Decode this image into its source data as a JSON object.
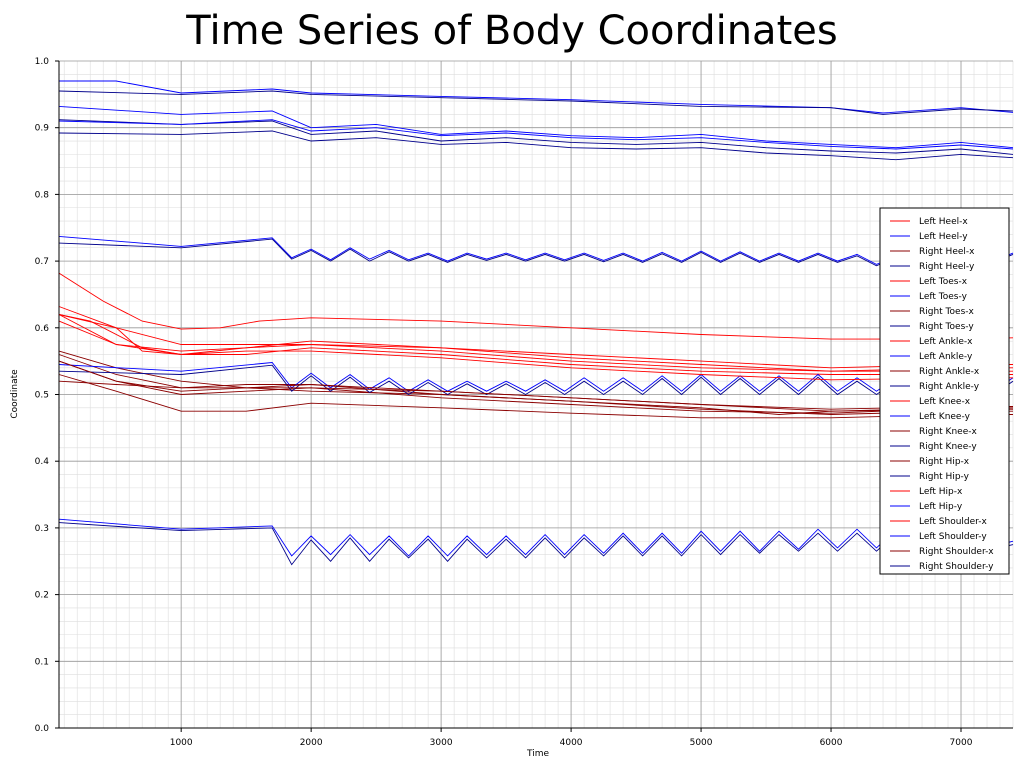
{
  "chart_data": {
    "type": "line",
    "title": "Time Series of Body Coordinates",
    "xlabel": "Time",
    "ylabel": "Coordinate",
    "xlim": [
      60,
      7400
    ],
    "ylim": [
      0.0,
      1.0
    ],
    "xticks": [
      1000,
      2000,
      3000,
      4000,
      5000,
      6000,
      7000
    ],
    "yticks": [
      0.0,
      0.1,
      0.2,
      0.3,
      0.4,
      0.5,
      0.6,
      0.7,
      0.8,
      0.9,
      1.0
    ],
    "xtick_labels": [
      "1000",
      "2000",
      "3000",
      "4000",
      "5000",
      "6000",
      "7000"
    ],
    "ytick_labels": [
      "0.0",
      "0.1",
      "0.2",
      "0.3",
      "0.4",
      "0.5",
      "0.6",
      "0.7",
      "0.8",
      "0.9",
      "1.0"
    ],
    "grid": true,
    "legend_position": "right",
    "colors": {
      "x_series": "#ff0000",
      "y_series": "#0000ff",
      "dark_x": "#8b0000",
      "dark_y": "#00008b"
    },
    "series": [
      {
        "name": "Left Heel-x",
        "color": "#ff0000",
        "x": [
          60,
          300,
          700,
          1000,
          1500,
          2000,
          3000,
          4000,
          5000,
          6000,
          7000,
          7400
        ],
        "y": [
          0.62,
          0.61,
          0.57,
          0.56,
          0.57,
          0.58,
          0.57,
          0.56,
          0.55,
          0.54,
          0.545,
          0.545
        ]
      },
      {
        "name": "Left Heel-y",
        "color": "#0000ff",
        "x": [
          60,
          1000,
          1700,
          1850,
          2000,
          2150,
          2300,
          2450,
          2600,
          2750,
          2900,
          3050,
          3200,
          3350,
          3500,
          3650,
          3800,
          3950,
          4100,
          4250,
          4400,
          4550,
          4700,
          4850,
          5000,
          5150,
          5300,
          5450,
          5600,
          5750,
          5900,
          6050,
          6200,
          6350,
          6500,
          6650,
          6800,
          6950,
          7100,
          7250,
          7400
        ],
        "y": [
          0.737,
          0.722,
          0.735,
          0.705,
          0.718,
          0.702,
          0.72,
          0.703,
          0.716,
          0.702,
          0.712,
          0.7,
          0.712,
          0.703,
          0.712,
          0.702,
          0.712,
          0.702,
          0.712,
          0.701,
          0.712,
          0.7,
          0.713,
          0.7,
          0.715,
          0.7,
          0.714,
          0.7,
          0.712,
          0.7,
          0.712,
          0.7,
          0.71,
          0.695,
          0.708,
          0.698,
          0.712,
          0.7,
          0.715,
          0.7,
          0.712
        ]
      },
      {
        "name": "Right Heel-x",
        "color": "#8b0000",
        "x": [
          60,
          500,
          1000,
          1500,
          2000,
          3000,
          4000,
          5000,
          5600,
          6000,
          7000,
          7400
        ],
        "y": [
          0.565,
          0.54,
          0.52,
          0.51,
          0.505,
          0.5,
          0.49,
          0.48,
          0.47,
          0.475,
          0.48,
          0.478
        ]
      },
      {
        "name": "Right Heel-y",
        "color": "#00008b",
        "x": [
          60,
          1000,
          1700,
          1850,
          2000,
          2150,
          2300,
          2450,
          2600,
          2750,
          2900,
          3050,
          3200,
          3350,
          3500,
          3650,
          3800,
          3950,
          4100,
          4250,
          4400,
          4550,
          4700,
          4850,
          5000,
          5150,
          5300,
          5450,
          5600,
          5750,
          5900,
          6050,
          6200,
          6350,
          6500,
          6650,
          6800,
          6950,
          7100,
          7250,
          7400
        ],
        "y": [
          0.727,
          0.72,
          0.733,
          0.703,
          0.716,
          0.7,
          0.718,
          0.7,
          0.714,
          0.7,
          0.71,
          0.698,
          0.71,
          0.701,
          0.71,
          0.7,
          0.71,
          0.7,
          0.71,
          0.699,
          0.71,
          0.698,
          0.711,
          0.698,
          0.713,
          0.698,
          0.712,
          0.698,
          0.71,
          0.698,
          0.71,
          0.698,
          0.708,
          0.693,
          0.706,
          0.696,
          0.71,
          0.698,
          0.713,
          0.698,
          0.71
        ]
      },
      {
        "name": "Left Toes-x",
        "color": "#ff0000",
        "x": [
          60,
          400,
          700,
          1000,
          1300,
          1600,
          2000,
          3000,
          4000,
          5000,
          6000,
          7000,
          7400
        ],
        "y": [
          0.682,
          0.64,
          0.61,
          0.598,
          0.6,
          0.61,
          0.615,
          0.61,
          0.6,
          0.59,
          0.583,
          0.583,
          0.585
        ]
      },
      {
        "name": "Left Toes-y",
        "color": "#0000ff",
        "x": [
          60,
          500,
          1000,
          1700,
          2000,
          3000,
          4000,
          5000,
          6000,
          6400,
          7000,
          7400
        ],
        "y": [
          0.97,
          0.97,
          0.952,
          0.958,
          0.952,
          0.947,
          0.942,
          0.935,
          0.93,
          0.922,
          0.93,
          0.923
        ]
      },
      {
        "name": "Right Toes-x",
        "color": "#8b0000",
        "x": [
          60,
          500,
          1000,
          1500,
          2000,
          3000,
          4000,
          5000,
          6000,
          7000,
          7400
        ],
        "y": [
          0.53,
          0.505,
          0.475,
          0.475,
          0.487,
          0.48,
          0.472,
          0.465,
          0.465,
          0.47,
          0.47
        ]
      },
      {
        "name": "Right Toes-y",
        "color": "#00008b",
        "x": [
          60,
          1000,
          1700,
          2000,
          3000,
          4000,
          5000,
          6000,
          6400,
          7000,
          7400
        ],
        "y": [
          0.955,
          0.95,
          0.955,
          0.95,
          0.945,
          0.94,
          0.932,
          0.93,
          0.92,
          0.928,
          0.925
        ]
      },
      {
        "name": "Left Ankle-x",
        "color": "#ff0000",
        "x": [
          60,
          500,
          1000,
          1500,
          2000,
          3000,
          4000,
          5000,
          6000,
          7000,
          7400
        ],
        "y": [
          0.62,
          0.6,
          0.575,
          0.575,
          0.575,
          0.57,
          0.555,
          0.545,
          0.535,
          0.54,
          0.54
        ]
      },
      {
        "name": "Left Ankle-y",
        "color": "#0000ff",
        "x": [
          60,
          1000,
          1700,
          2000,
          2500,
          3000,
          3500,
          4000,
          4500,
          5000,
          5500,
          6000,
          6500,
          7000,
          7400
        ],
        "y": [
          0.932,
          0.92,
          0.925,
          0.9,
          0.905,
          0.89,
          0.895,
          0.888,
          0.885,
          0.89,
          0.88,
          0.875,
          0.87,
          0.878,
          0.87
        ]
      },
      {
        "name": "Right Ankle-x",
        "color": "#8b0000",
        "x": [
          60,
          500,
          1000,
          1500,
          2000,
          3000,
          4000,
          5000,
          6000,
          7000,
          7400
        ],
        "y": [
          0.56,
          0.53,
          0.51,
          0.515,
          0.515,
          0.5,
          0.49,
          0.478,
          0.47,
          0.475,
          0.475
        ]
      },
      {
        "name": "Right Ankle-y",
        "color": "#00008b",
        "x": [
          60,
          1000,
          1700,
          2000,
          2500,
          3000,
          3500,
          4000,
          4500,
          5000,
          5500,
          6000,
          6500,
          7000,
          7400
        ],
        "y": [
          0.912,
          0.905,
          0.91,
          0.89,
          0.895,
          0.88,
          0.885,
          0.878,
          0.875,
          0.878,
          0.87,
          0.865,
          0.862,
          0.868,
          0.86
        ]
      },
      {
        "name": "Left Knee-x",
        "color": "#ff0000",
        "x": [
          60,
          500,
          700,
          1000,
          1500,
          2000,
          3000,
          4000,
          5000,
          6000,
          7000,
          7400
        ],
        "y": [
          0.632,
          0.6,
          0.565,
          0.56,
          0.56,
          0.57,
          0.56,
          0.545,
          0.535,
          0.53,
          0.53,
          0.53
        ]
      },
      {
        "name": "Left Knee-y",
        "color": "#0000ff",
        "x": [
          60,
          1000,
          1700,
          1850,
          2000,
          2150,
          2300,
          2450,
          2600,
          2750,
          2900,
          3050,
          3200,
          3350,
          3500,
          3650,
          3800,
          3950,
          4100,
          4250,
          4400,
          4550,
          4700,
          4850,
          5000,
          5150,
          5300,
          5450,
          5600,
          5750,
          5900,
          6050,
          6200,
          6350,
          6500,
          6650,
          6800,
          6950,
          7100,
          7250,
          7400
        ],
        "y": [
          0.545,
          0.535,
          0.548,
          0.51,
          0.532,
          0.51,
          0.53,
          0.508,
          0.525,
          0.505,
          0.522,
          0.505,
          0.52,
          0.505,
          0.52,
          0.505,
          0.522,
          0.505,
          0.525,
          0.505,
          0.525,
          0.505,
          0.528,
          0.505,
          0.53,
          0.505,
          0.528,
          0.505,
          0.528,
          0.505,
          0.53,
          0.505,
          0.525,
          0.505,
          0.525,
          0.505,
          0.528,
          0.505,
          0.53,
          0.505,
          0.525
        ]
      },
      {
        "name": "Right Knee-x",
        "color": "#8b0000",
        "x": [
          60,
          500,
          1000,
          1500,
          2000,
          3000,
          4000,
          5000,
          6000,
          7000,
          7400
        ],
        "y": [
          0.55,
          0.52,
          0.5,
          0.505,
          0.51,
          0.495,
          0.485,
          0.475,
          0.472,
          0.48,
          0.48
        ]
      },
      {
        "name": "Right Knee-y",
        "color": "#00008b",
        "x": [
          60,
          1000,
          1700,
          1850,
          2000,
          2150,
          2300,
          2450,
          2600,
          2750,
          2900,
          3050,
          3200,
          3350,
          3500,
          3650,
          3800,
          3950,
          4100,
          4250,
          4400,
          4550,
          4700,
          4850,
          5000,
          5150,
          5300,
          5450,
          5600,
          5750,
          5900,
          6050,
          6200,
          6350,
          6500,
          6650,
          6800,
          6950,
          7100,
          7250,
          7400
        ],
        "y": [
          0.535,
          0.53,
          0.544,
          0.505,
          0.528,
          0.505,
          0.526,
          0.503,
          0.52,
          0.5,
          0.518,
          0.5,
          0.516,
          0.5,
          0.516,
          0.5,
          0.518,
          0.5,
          0.52,
          0.5,
          0.52,
          0.5,
          0.524,
          0.5,
          0.526,
          0.5,
          0.524,
          0.5,
          0.524,
          0.5,
          0.526,
          0.5,
          0.52,
          0.5,
          0.52,
          0.5,
          0.524,
          0.5,
          0.526,
          0.5,
          0.52
        ]
      },
      {
        "name": "Right Hip-x",
        "color": "#8b0000",
        "x": [
          60,
          500,
          1000,
          1500,
          2000,
          3000,
          4000,
          5000,
          6000,
          7000,
          7400
        ],
        "y": [
          0.52,
          0.515,
          0.51,
          0.51,
          0.51,
          0.505,
          0.495,
          0.485,
          0.475,
          0.478,
          0.478
        ]
      },
      {
        "name": "Right Hip-y",
        "color": "#00008b",
        "x": [
          60,
          1000,
          1700,
          2000,
          2500,
          3000,
          3500,
          4000,
          4500,
          5000,
          5500,
          6000,
          6500,
          7000,
          7400
        ],
        "y": [
          0.892,
          0.89,
          0.895,
          0.88,
          0.885,
          0.875,
          0.878,
          0.87,
          0.868,
          0.87,
          0.862,
          0.858,
          0.852,
          0.86,
          0.855
        ]
      },
      {
        "name": "Left Hip-x",
        "color": "#ff0000",
        "x": [
          60,
          500,
          1000,
          1500,
          2000,
          3000,
          4000,
          5000,
          6000,
          7000,
          7400
        ],
        "y": [
          0.61,
          0.575,
          0.56,
          0.565,
          0.565,
          0.555,
          0.54,
          0.53,
          0.522,
          0.525,
          0.525
        ]
      },
      {
        "name": "Left Hip-y",
        "color": "#0000ff",
        "x": [
          60,
          1000,
          1700,
          2000,
          2500,
          3000,
          3500,
          4000,
          4500,
          5000,
          5500,
          6000,
          6500,
          7000,
          7400
        ],
        "y": [
          0.91,
          0.905,
          0.912,
          0.895,
          0.9,
          0.888,
          0.892,
          0.885,
          0.882,
          0.885,
          0.878,
          0.872,
          0.868,
          0.874,
          0.868
        ]
      },
      {
        "name": "Left Shoulder-x",
        "color": "#ff0000",
        "x": [
          60,
          500,
          1000,
          1500,
          2000,
          3000,
          4000,
          5000,
          6000,
          7000,
          7400
        ],
        "y": [
          0.62,
          0.575,
          0.565,
          0.57,
          0.575,
          0.565,
          0.55,
          0.54,
          0.535,
          0.535,
          0.535
        ]
      },
      {
        "name": "Left Shoulder-y",
        "color": "#0000ff",
        "x": [
          60,
          1000,
          1700,
          1850,
          2000,
          2150,
          2300,
          2450,
          2600,
          2750,
          2900,
          3050,
          3200,
          3350,
          3500,
          3650,
          3800,
          3950,
          4100,
          4250,
          4400,
          4550,
          4700,
          4850,
          5000,
          5150,
          5300,
          5450,
          5600,
          5750,
          5900,
          6050,
          6200,
          6350,
          6500,
          6650,
          6800,
          6950,
          7100,
          7250,
          7400
        ],
        "y": [
          0.313,
          0.298,
          0.303,
          0.258,
          0.288,
          0.26,
          0.29,
          0.26,
          0.288,
          0.258,
          0.288,
          0.258,
          0.288,
          0.26,
          0.288,
          0.26,
          0.29,
          0.26,
          0.29,
          0.262,
          0.292,
          0.262,
          0.292,
          0.262,
          0.295,
          0.265,
          0.295,
          0.265,
          0.295,
          0.268,
          0.298,
          0.27,
          0.298,
          0.27,
          0.298,
          0.27,
          0.3,
          0.272,
          0.3,
          0.272,
          0.28
        ]
      },
      {
        "name": "Right Shoulder-x",
        "color": "#8b0000",
        "x": [
          60,
          500,
          1000,
          1500,
          2000,
          3000,
          4000,
          5000,
          6000,
          7000,
          7400
        ],
        "y": [
          0.55,
          0.52,
          0.505,
          0.51,
          0.515,
          0.505,
          0.495,
          0.485,
          0.478,
          0.482,
          0.482
        ]
      },
      {
        "name": "Right Shoulder-y",
        "color": "#00008b",
        "x": [
          60,
          1000,
          1700,
          1850,
          2000,
          2150,
          2300,
          2450,
          2600,
          2750,
          2900,
          3050,
          3200,
          3350,
          3500,
          3650,
          3800,
          3950,
          4100,
          4250,
          4400,
          4550,
          4700,
          4850,
          5000,
          5150,
          5300,
          5450,
          5600,
          5750,
          5900,
          6050,
          6200,
          6350,
          6500,
          6650,
          6800,
          6950,
          7100,
          7250,
          7400
        ],
        "y": [
          0.308,
          0.296,
          0.3,
          0.245,
          0.282,
          0.25,
          0.285,
          0.25,
          0.283,
          0.255,
          0.283,
          0.25,
          0.283,
          0.255,
          0.283,
          0.255,
          0.285,
          0.255,
          0.285,
          0.258,
          0.288,
          0.258,
          0.288,
          0.258,
          0.29,
          0.26,
          0.29,
          0.262,
          0.29,
          0.265,
          0.292,
          0.265,
          0.292,
          0.265,
          0.292,
          0.265,
          0.295,
          0.268,
          0.295,
          0.268,
          0.275
        ]
      }
    ]
  }
}
